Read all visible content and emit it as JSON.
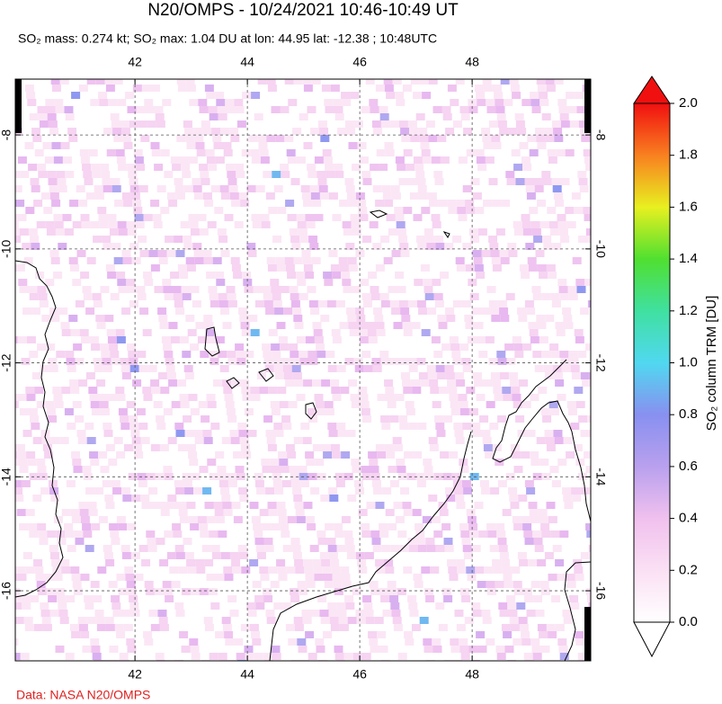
{
  "title": "N20/OMPS - 10/24/2021 10:46-10:49 UT",
  "subtitle": "SO₂ mass: 0.274 kt; SO₂ max: 1.04 DU at lon: 44.95 lat: -12.38 ; 10:48UTC",
  "credit": "Data: NASA N20/OMPS",
  "map": {
    "xlim": [
      39.87,
      50.11
    ],
    "ylim": [
      -17.23,
      -7.02
    ],
    "xticks": [
      42,
      44,
      46,
      48
    ],
    "yticks": [
      -8,
      -10,
      -12,
      -14,
      -16
    ],
    "grid": true
  },
  "colorbar": {
    "label": "SO₂ column TRM [DU]",
    "lim": [
      0,
      2
    ],
    "ticks": [
      {
        "value": 0,
        "label": "0.0"
      },
      {
        "value": 0.2,
        "label": "0.2"
      },
      {
        "value": 0.4,
        "label": "0.4"
      },
      {
        "value": 0.6,
        "label": "0.6"
      },
      {
        "value": 0.8,
        "label": "0.8"
      },
      {
        "value": 1,
        "label": "1.0"
      },
      {
        "value": 1.2,
        "label": "1.2"
      },
      {
        "value": 1.4,
        "label": "1.4"
      },
      {
        "value": 1.6,
        "label": "1.6"
      },
      {
        "value": 1.8,
        "label": "1.8"
      },
      {
        "value": 2,
        "label": "2.0"
      }
    ]
  }
}
